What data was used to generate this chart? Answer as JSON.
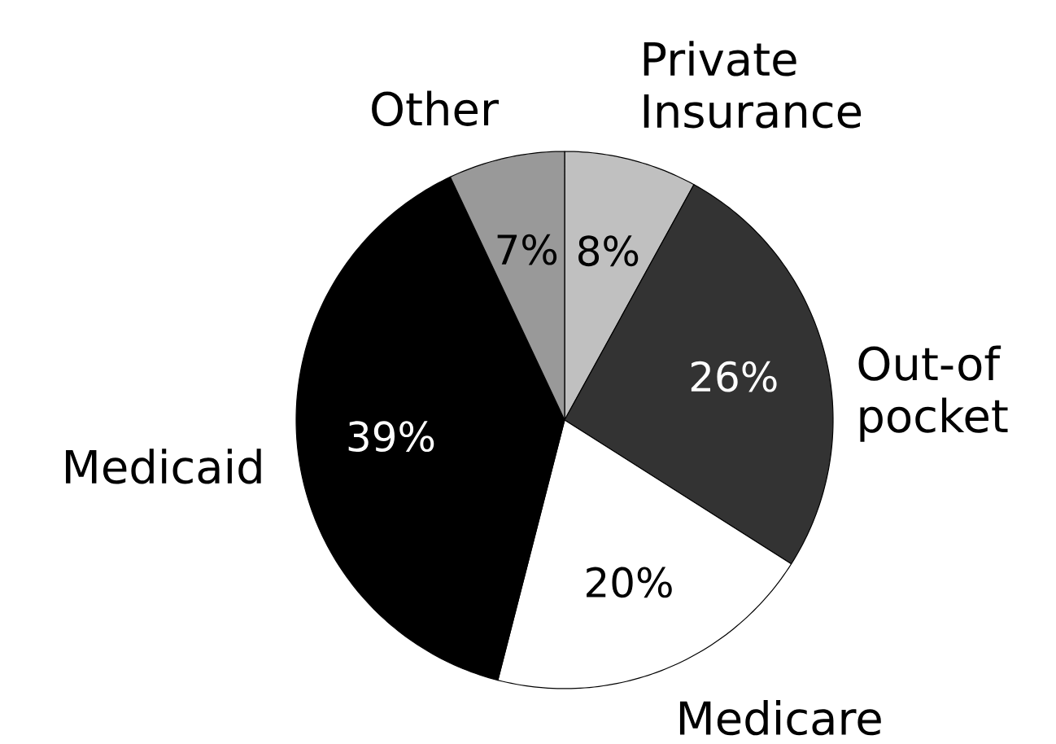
{
  "chart_data": {
    "type": "pie",
    "categories": [
      "Private Insurance",
      "Out-of pocket",
      "Medicare",
      "Medicaid",
      "Other"
    ],
    "values": [
      8,
      26,
      20,
      39,
      7
    ],
    "colors": [
      "#c0c0c0",
      "#333333",
      "#ffffff",
      "#000000",
      "#999999"
    ],
    "value_labels": [
      "8%",
      "26%",
      "20%",
      "39%",
      "7%"
    ]
  }
}
